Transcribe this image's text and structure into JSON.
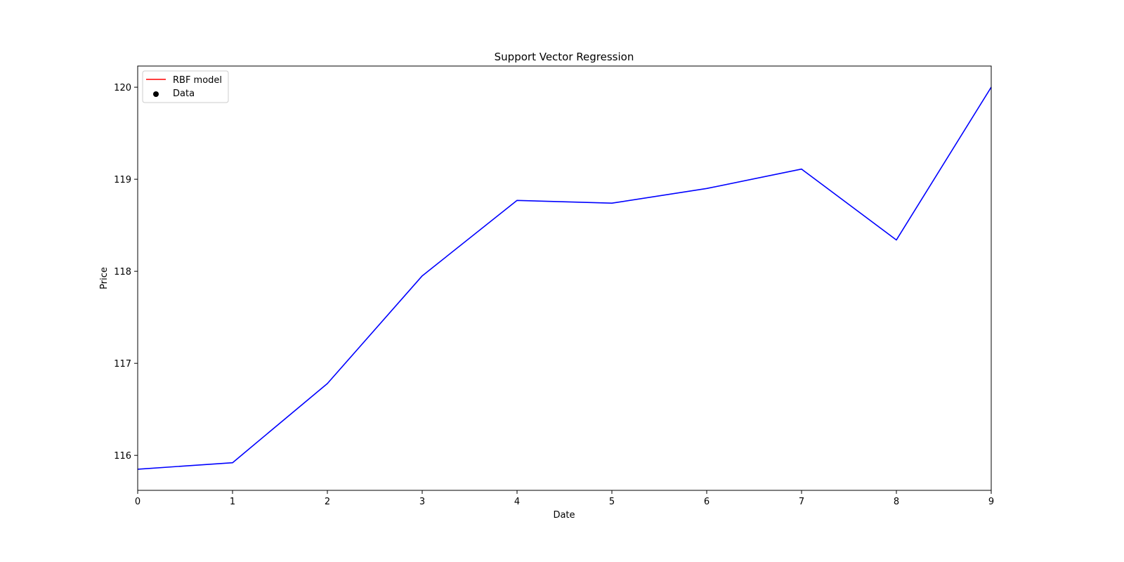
{
  "chart_data": {
    "type": "line",
    "title": "Support Vector Regression",
    "xlabel": "Date",
    "ylabel": "Price",
    "xlim": [
      0,
      9
    ],
    "ylim": [
      115.62,
      120.23
    ],
    "xticks": [
      0,
      1,
      2,
      3,
      4,
      5,
      6,
      7,
      8,
      9
    ],
    "yticks": [
      116,
      117,
      118,
      119,
      120
    ],
    "grid": false,
    "legend_position": "upper left",
    "legend": [
      {
        "label": "RBF model",
        "marker": "line",
        "color": "#ff0000"
      },
      {
        "label": "Data",
        "marker": "dot",
        "color": "#000000"
      }
    ],
    "series": [
      {
        "color": "#0000ff",
        "x": [
          0,
          1,
          2,
          3,
          4,
          5,
          6,
          7,
          8,
          9
        ],
        "y": [
          115.85,
          115.92,
          116.78,
          117.95,
          118.77,
          118.74,
          118.9,
          119.11,
          118.34,
          120.0
        ]
      }
    ]
  }
}
